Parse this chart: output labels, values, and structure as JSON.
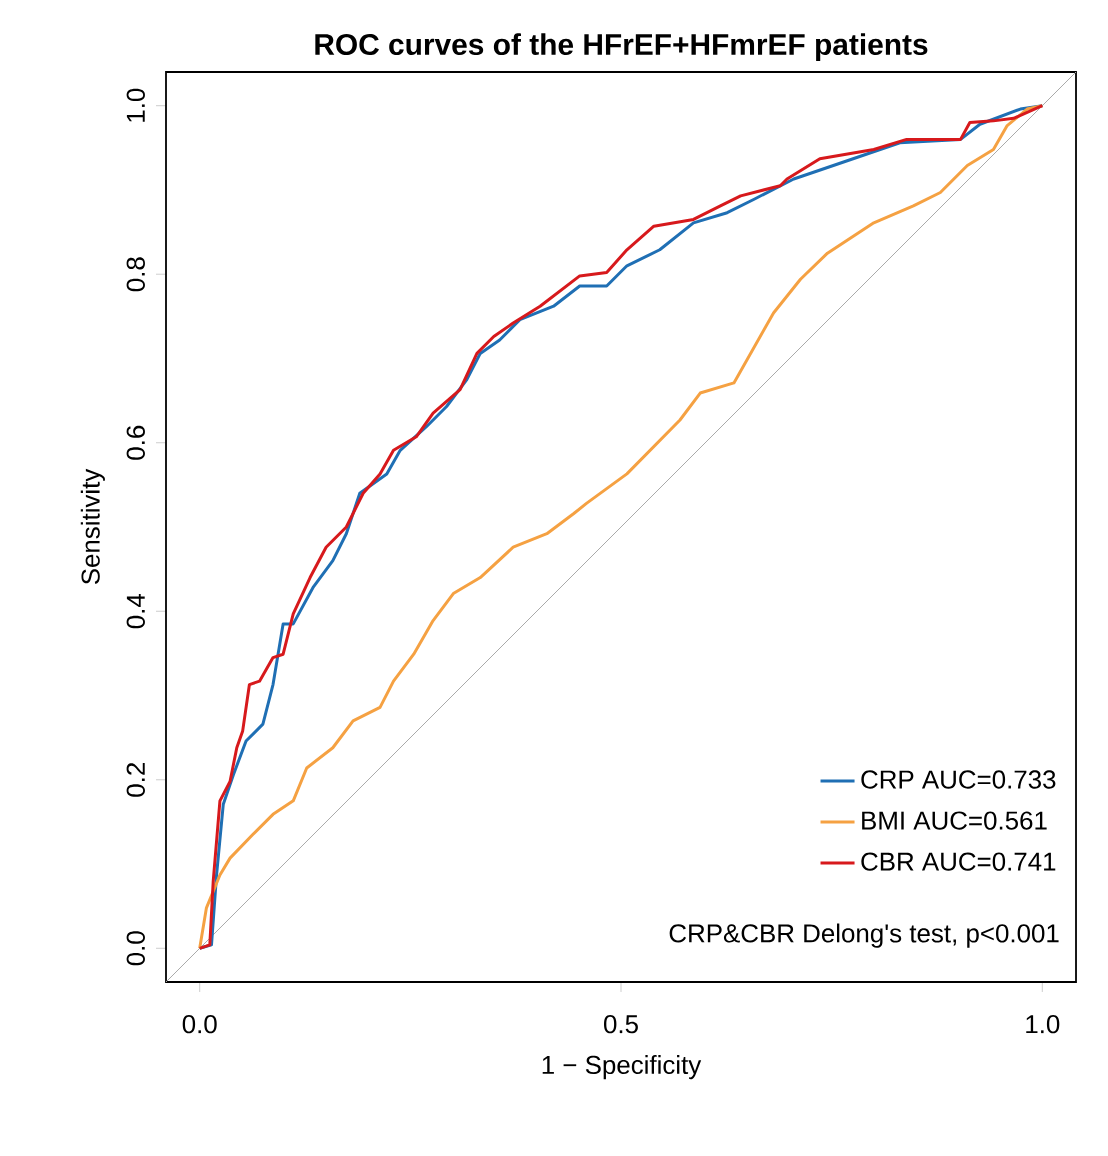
{
  "chart_data": {
    "type": "line",
    "title": "ROC curves of the HFrEF+HFmrEF patients",
    "xlabel": "1 − Specificity",
    "ylabel": "Sensitivity",
    "xlim": [
      -0.04,
      1.04
    ],
    "ylim": [
      -0.04,
      1.04
    ],
    "xticks": [
      {
        "value": 0,
        "label": "0.0"
      },
      {
        "value": 0.5,
        "label": "0.5"
      },
      {
        "value": 1,
        "label": "1.0"
      }
    ],
    "yticks": [
      {
        "value": 0,
        "label": "0.0"
      },
      {
        "value": 0.2,
        "label": "0.2"
      },
      {
        "value": 0.4,
        "label": "0.4"
      },
      {
        "value": 0.6,
        "label": "0.6"
      },
      {
        "value": 0.8,
        "label": "0.8"
      },
      {
        "value": 1,
        "label": "1.0"
      }
    ],
    "grid": false,
    "legend": "bottom right",
    "marker": "none",
    "line_style": "solid",
    "annotations": [
      "CRP&CBR Delong's test, p<0.001"
    ],
    "series": [
      {
        "color": "#aaaaaa",
        "x": [
          -0.04,
          1.04
        ],
        "values": [
          -0.04,
          1.04
        ]
      },
      {
        "name": "CRP AUC=0.733",
        "color": "#1f6fb4",
        "x": [
          0,
          0.014,
          0.02,
          0.028,
          0.04,
          0.055,
          0.075,
          0.087,
          0.099,
          0.111,
          0.135,
          0.158,
          0.174,
          0.19,
          0.222,
          0.238,
          0.269,
          0.293,
          0.317,
          0.333,
          0.356,
          0.38,
          0.42,
          0.451,
          0.483,
          0.507,
          0.546,
          0.586,
          0.626,
          0.658,
          0.705,
          0.752,
          0.831,
          0.903,
          0.926,
          0.974,
          1.0
        ],
        "values": [
          0,
          0.004,
          0.087,
          0.171,
          0.206,
          0.246,
          0.266,
          0.313,
          0.385,
          0.385,
          0.429,
          0.46,
          0.492,
          0.54,
          0.563,
          0.591,
          0.619,
          0.643,
          0.675,
          0.706,
          0.722,
          0.746,
          0.762,
          0.786,
          0.786,
          0.81,
          0.829,
          0.861,
          0.873,
          0.889,
          0.913,
          0.929,
          0.956,
          0.96,
          0.978,
          0.996,
          1.0
        ]
      },
      {
        "name": "BMI AUC=0.561",
        "color": "#f5a142",
        "x": [
          0,
          0.008,
          0.024,
          0.036,
          0.063,
          0.087,
          0.111,
          0.127,
          0.158,
          0.182,
          0.214,
          0.23,
          0.254,
          0.277,
          0.301,
          0.333,
          0.372,
          0.412,
          0.444,
          0.459,
          0.507,
          0.57,
          0.594,
          0.634,
          0.681,
          0.713,
          0.745,
          0.8,
          0.847,
          0.879,
          0.911,
          0.942,
          0.958,
          0.982,
          1.0
        ],
        "values": [
          0,
          0.048,
          0.087,
          0.107,
          0.135,
          0.159,
          0.175,
          0.214,
          0.238,
          0.27,
          0.286,
          0.317,
          0.349,
          0.389,
          0.421,
          0.44,
          0.476,
          0.492,
          0.516,
          0.528,
          0.563,
          0.627,
          0.659,
          0.671,
          0.754,
          0.794,
          0.825,
          0.861,
          0.881,
          0.897,
          0.929,
          0.948,
          0.976,
          0.996,
          1.0
        ]
      },
      {
        "name": "CBR AUC=0.741",
        "color": "#d7191c",
        "x": [
          0,
          0.012,
          0.016,
          0.024,
          0.036,
          0.044,
          0.051,
          0.059,
          0.071,
          0.087,
          0.099,
          0.111,
          0.131,
          0.15,
          0.174,
          0.194,
          0.214,
          0.23,
          0.257,
          0.277,
          0.309,
          0.329,
          0.349,
          0.372,
          0.404,
          0.451,
          0.483,
          0.507,
          0.539,
          0.586,
          0.618,
          0.642,
          0.689,
          0.697,
          0.736,
          0.8,
          0.839,
          0.903,
          0.914,
          0.942,
          0.966,
          1.0
        ],
        "values": [
          0,
          0.004,
          0.079,
          0.175,
          0.198,
          0.238,
          0.258,
          0.313,
          0.317,
          0.345,
          0.349,
          0.397,
          0.44,
          0.476,
          0.5,
          0.54,
          0.563,
          0.591,
          0.607,
          0.635,
          0.663,
          0.706,
          0.726,
          0.742,
          0.762,
          0.798,
          0.802,
          0.829,
          0.857,
          0.865,
          0.881,
          0.893,
          0.905,
          0.913,
          0.937,
          0.948,
          0.96,
          0.96,
          0.98,
          0.982,
          0.985,
          1.0
        ]
      }
    ]
  }
}
